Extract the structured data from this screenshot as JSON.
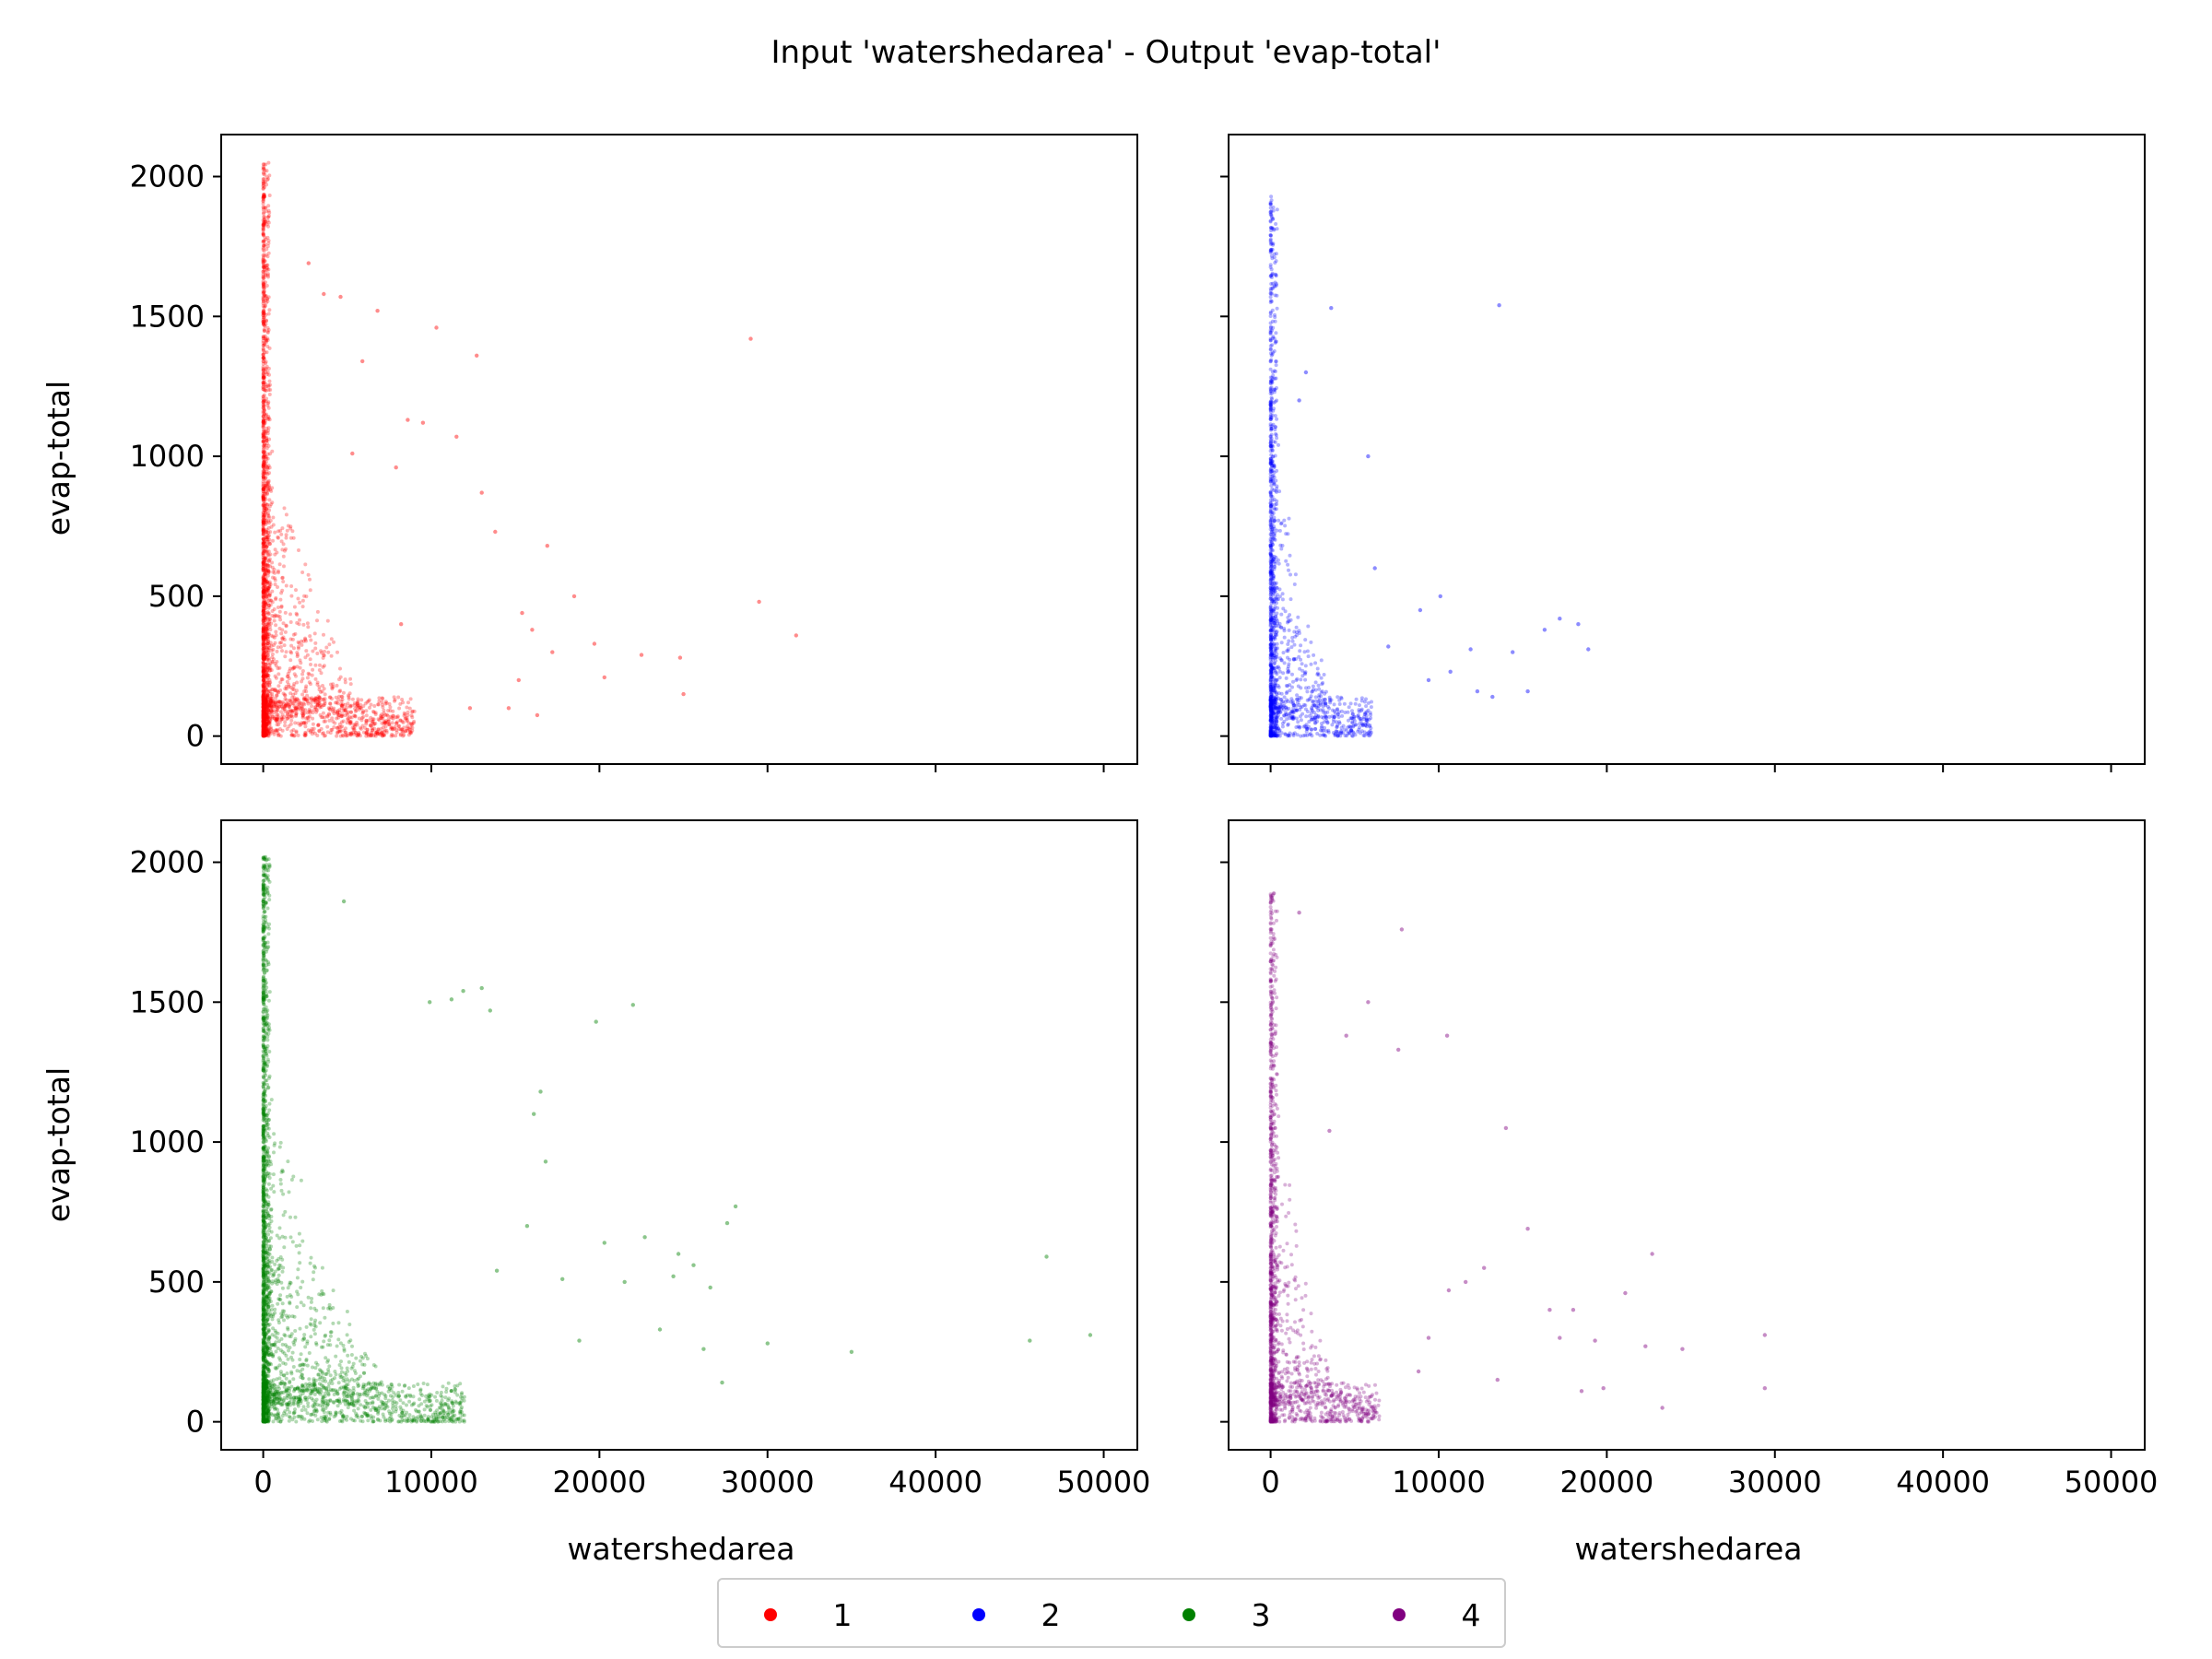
{
  "chart_data": {
    "type": "scatter",
    "title": "Input 'watershedarea' - Output 'evap-total'",
    "xlabel": "watershedarea",
    "ylabel": "evap-total",
    "xlim": [
      -2500,
      52000
    ],
    "ylim": [
      -100,
      2150
    ],
    "x_ticks": [
      0,
      10000,
      20000,
      30000,
      40000,
      50000
    ],
    "y_ticks": [
      0,
      500,
      1000,
      1500,
      2000
    ],
    "legend_position": "bottom-center",
    "colors": {
      "1": "#ff0000",
      "2": "#0000ff",
      "3": "#008000",
      "4": "#800080"
    },
    "legend": [
      "1",
      "2",
      "3",
      "4"
    ],
    "panels": [
      {
        "series": "1",
        "color": "#ff0000",
        "core": {
          "n": 2600,
          "x_max_approx": 9000,
          "y_max_approx": 2050
        },
        "points": [
          [
            29000,
            1420
          ],
          [
            31700,
            360
          ],
          [
            29500,
            480
          ],
          [
            25000,
            150
          ],
          [
            22500,
            290
          ],
          [
            20300,
            210
          ],
          [
            19700,
            330
          ],
          [
            24800,
            280
          ],
          [
            18500,
            500
          ],
          [
            16300,
            75
          ],
          [
            16900,
            680
          ],
          [
            15400,
            440
          ],
          [
            14600,
            100
          ],
          [
            13800,
            730
          ],
          [
            13000,
            870
          ],
          [
            12700,
            1360
          ],
          [
            12300,
            100
          ],
          [
            11500,
            1070
          ],
          [
            10300,
            1460
          ],
          [
            9500,
            1120
          ],
          [
            8600,
            1130
          ],
          [
            8200,
            400
          ],
          [
            7900,
            960
          ],
          [
            6800,
            1520
          ],
          [
            5900,
            1340
          ],
          [
            5300,
            1010
          ],
          [
            4600,
            1570
          ],
          [
            3600,
            1580
          ],
          [
            2700,
            1690
          ],
          [
            15200,
            200
          ],
          [
            17200,
            300
          ],
          [
            16000,
            380
          ]
        ]
      },
      {
        "series": "2",
        "color": "#0000ff",
        "core": {
          "n": 1500,
          "x_max_approx": 6000,
          "y_max_approx": 1930
        },
        "points": [
          [
            13600,
            1540
          ],
          [
            3600,
            1530
          ],
          [
            2100,
            1300
          ],
          [
            1700,
            1200
          ],
          [
            5800,
            1000
          ],
          [
            6200,
            600
          ],
          [
            7000,
            320
          ],
          [
            8900,
            450
          ],
          [
            10100,
            500
          ],
          [
            11900,
            310
          ],
          [
            12300,
            160
          ],
          [
            13200,
            140
          ],
          [
            14400,
            300
          ],
          [
            15300,
            160
          ],
          [
            16300,
            380
          ],
          [
            17200,
            420
          ],
          [
            18300,
            400
          ],
          [
            18900,
            310
          ],
          [
            10700,
            230
          ],
          [
            9400,
            200
          ]
        ]
      },
      {
        "series": "3",
        "color": "#008000",
        "core": {
          "n": 2800,
          "x_max_approx": 12000,
          "y_max_approx": 2020
        },
        "points": [
          [
            49200,
            310
          ],
          [
            46600,
            590
          ],
          [
            45600,
            290
          ],
          [
            35000,
            250
          ],
          [
            30000,
            280
          ],
          [
            28100,
            770
          ],
          [
            27600,
            710
          ],
          [
            27300,
            140
          ],
          [
            26600,
            480
          ],
          [
            25600,
            560
          ],
          [
            24400,
            520
          ],
          [
            23600,
            330
          ],
          [
            22700,
            660
          ],
          [
            22000,
            1490
          ],
          [
            21500,
            500
          ],
          [
            20300,
            640
          ],
          [
            19800,
            1430
          ],
          [
            18800,
            290
          ],
          [
            17800,
            510
          ],
          [
            16800,
            930
          ],
          [
            16100,
            1100
          ],
          [
            15700,
            700
          ],
          [
            13900,
            540
          ],
          [
            13500,
            1470
          ],
          [
            13000,
            1550
          ],
          [
            11900,
            1540
          ],
          [
            11200,
            1510
          ],
          [
            9900,
            1500
          ],
          [
            4800,
            1860
          ],
          [
            16500,
            1180
          ],
          [
            24700,
            600
          ],
          [
            26200,
            260
          ]
        ]
      },
      {
        "series": "4",
        "color": "#800080",
        "core": {
          "n": 1600,
          "x_max_approx": 6500,
          "y_max_approx": 1890
        },
        "points": [
          [
            29400,
            310
          ],
          [
            29400,
            120
          ],
          [
            23300,
            50
          ],
          [
            22700,
            600
          ],
          [
            22300,
            270
          ],
          [
            21100,
            460
          ],
          [
            19800,
            120
          ],
          [
            19300,
            290
          ],
          [
            18500,
            110
          ],
          [
            18000,
            400
          ],
          [
            17200,
            300
          ],
          [
            16600,
            400
          ],
          [
            15300,
            690
          ],
          [
            14000,
            1050
          ],
          [
            12700,
            550
          ],
          [
            11600,
            500
          ],
          [
            10600,
            470
          ],
          [
            10500,
            1380
          ],
          [
            9400,
            300
          ],
          [
            7800,
            1760
          ],
          [
            7600,
            1330
          ],
          [
            5800,
            1500
          ],
          [
            4500,
            1380
          ],
          [
            1700,
            1820
          ],
          [
            3500,
            1040
          ],
          [
            13500,
            150
          ],
          [
            8800,
            180
          ],
          [
            24500,
            260
          ]
        ]
      }
    ]
  },
  "figure": {
    "title": "Input 'watershedarea' - Output 'evap-total'",
    "ylabel_top": "evap-total",
    "ylabel_bottom": "evap-total",
    "xlabel_left": "watershedarea",
    "xlabel_right": "watershedarea",
    "legend_labels": [
      "1",
      "2",
      "3",
      "4"
    ]
  }
}
